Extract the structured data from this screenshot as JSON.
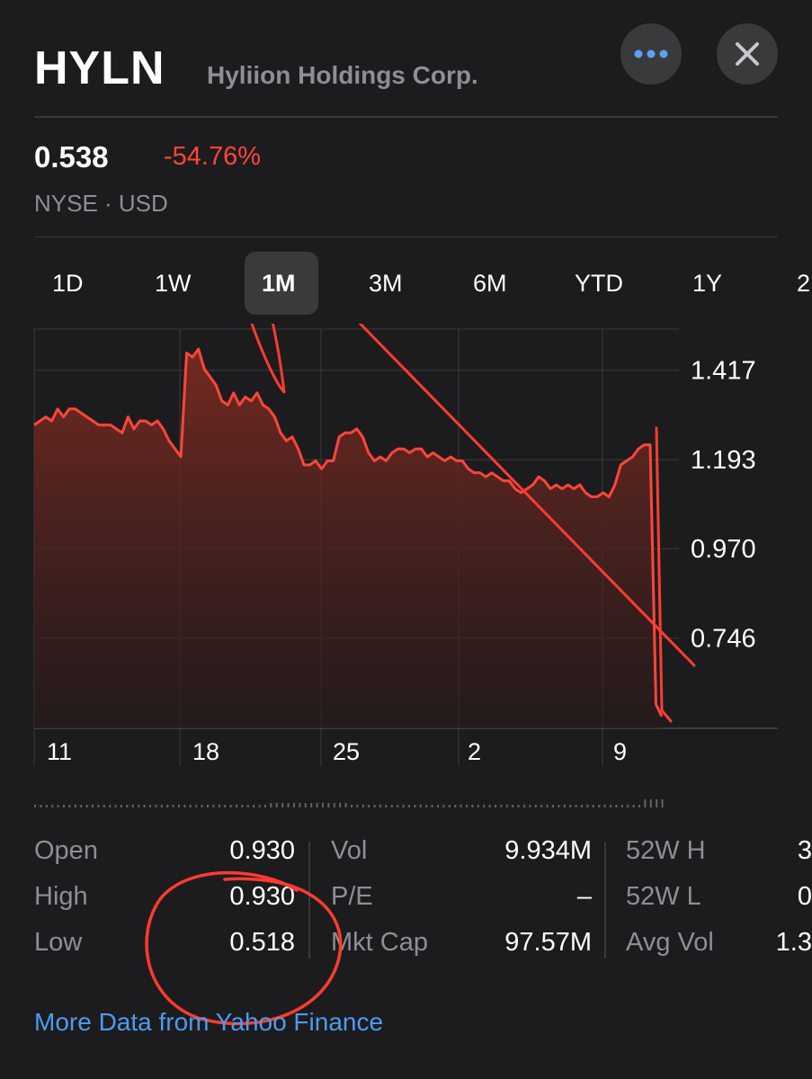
{
  "header": {
    "ticker": "HYLN",
    "company": "Hyliion Holdings Corp.",
    "more_icon": "ellipsis-icon",
    "close_icon": "close-icon"
  },
  "quote": {
    "price": "0.538",
    "change_percent": "-54.76%",
    "exchange_currency": "NYSE · USD",
    "change_color": "#ff453a"
  },
  "ranges": [
    {
      "label": "1D",
      "active": false
    },
    {
      "label": "1W",
      "active": false
    },
    {
      "label": "1M",
      "active": true
    },
    {
      "label": "3M",
      "active": false
    },
    {
      "label": "6M",
      "active": false
    },
    {
      "label": "YTD",
      "active": false
    },
    {
      "label": "1Y",
      "active": false
    },
    {
      "label": "2",
      "active": false
    }
  ],
  "chart": {
    "y_labels": [
      "1.417",
      "1.193",
      "0.970",
      "0.746"
    ],
    "x_labels": [
      "11",
      "18",
      "25",
      "2",
      "9"
    ],
    "line_color": "#ff453a"
  },
  "chart_data": {
    "type": "area",
    "y_ticks": [
      1.417,
      1.193,
      0.97,
      0.746
    ],
    "x_ticks": [
      "11",
      "18",
      "25",
      "2",
      "9"
    ],
    "ylim": [
      0.52,
      1.52
    ],
    "series": [
      {
        "values": [
          1.28,
          1.29,
          1.3,
          1.29,
          1.32,
          1.3,
          1.32,
          1.32,
          1.31,
          1.3,
          1.29,
          1.28,
          1.28,
          1.28,
          1.27,
          1.26,
          1.3,
          1.27,
          1.29,
          1.29,
          1.28,
          1.29,
          1.27,
          1.24,
          1.22,
          1.2,
          1.46,
          1.45,
          1.47,
          1.42,
          1.4,
          1.38,
          1.34,
          1.33,
          1.36,
          1.33,
          1.35,
          1.34,
          1.36,
          1.33,
          1.32,
          1.3,
          1.26,
          1.24,
          1.25,
          1.22,
          1.18,
          1.18,
          1.19,
          1.17,
          1.19,
          1.19,
          1.25,
          1.26,
          1.26,
          1.27,
          1.25,
          1.21,
          1.19,
          1.2,
          1.19,
          1.21,
          1.22,
          1.22,
          1.21,
          1.22,
          1.22,
          1.2,
          1.21,
          1.2,
          1.19,
          1.2,
          1.19,
          1.19,
          1.17,
          1.16,
          1.16,
          1.15,
          1.16,
          1.15,
          1.14,
          1.14,
          1.12,
          1.11,
          1.12,
          1.13,
          1.15,
          1.14,
          1.12,
          1.13,
          1.12,
          1.13,
          1.12,
          1.13,
          1.11,
          1.1,
          1.1,
          1.11,
          1.1,
          1.13,
          1.18,
          1.19,
          1.2,
          1.22,
          1.23,
          1.23,
          0.58,
          0.55
        ]
      }
    ]
  },
  "stats": {
    "col1": [
      {
        "label": "Open",
        "value": "0.930"
      },
      {
        "label": "High",
        "value": "0.930"
      },
      {
        "label": "Low",
        "value": "0.518"
      }
    ],
    "col2": [
      {
        "label": "Vol",
        "value": "9.934M"
      },
      {
        "label": "P/E",
        "value": "–"
      },
      {
        "label": "Mkt Cap",
        "value": "97.57M"
      }
    ],
    "col3": [
      {
        "label": "52W H",
        "value": "3"
      },
      {
        "label": "52W L",
        "value": "0"
      },
      {
        "label": "Avg Vol",
        "value": "1.3"
      }
    ]
  },
  "footer": {
    "link_text": "More Data from Yahoo Finance",
    "link_color": "#4d9bf0"
  }
}
